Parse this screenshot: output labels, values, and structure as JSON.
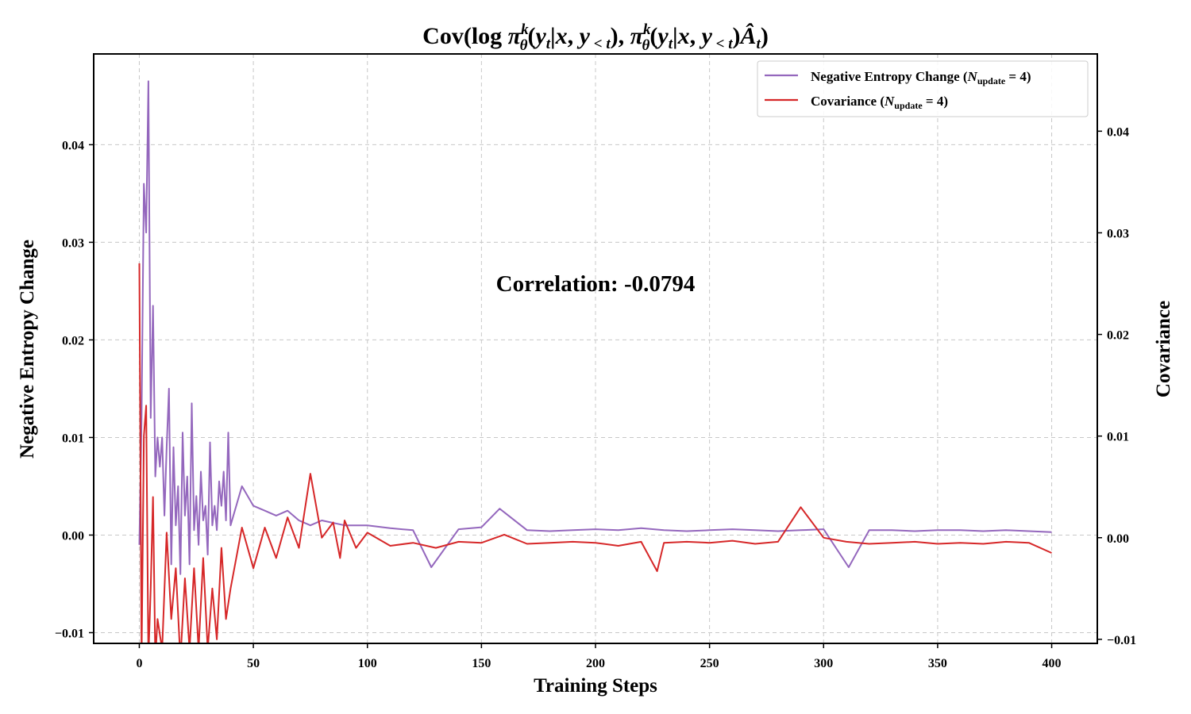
{
  "chart_data": {
    "type": "line",
    "title": "Cov(log π_θ^k(y_t|x, y_<t), π_θ^k(y_t|x, y_<t)Â_t)",
    "xlabel": "Training Steps",
    "ylabel_left": "Negative Entropy Change",
    "ylabel_right": "Covariance",
    "xlim": [
      -20,
      420
    ],
    "ylim_left": [
      -0.0111,
      0.0493
    ],
    "ylim_right": [
      -0.0104,
      0.0476
    ],
    "xticks": [
      0,
      50,
      100,
      150,
      200,
      250,
      300,
      350,
      400
    ],
    "yticks_left": [
      -0.01,
      0.0,
      0.01,
      0.02,
      0.03,
      0.04
    ],
    "yticks_right": [
      -0.01,
      0.0,
      0.01,
      0.02,
      0.03,
      0.04
    ],
    "tick_labels_left": [
      "−0.01",
      "0.00",
      "0.01",
      "0.02",
      "0.03",
      "0.04"
    ],
    "tick_labels_right": [
      "−0.01",
      "0.00",
      "0.01",
      "0.02",
      "0.03",
      "0.04"
    ],
    "tick_labels_x": [
      "0",
      "50",
      "100",
      "150",
      "200",
      "250",
      "300",
      "350",
      "400"
    ],
    "grid": true,
    "legend_position": "top-right",
    "annotation": "Correlation: -0.0794",
    "series": [
      {
        "name": "Negative Entropy Change (N_update = 4)",
        "legend_main": "Negative Entropy Change (",
        "legend_sym": "N",
        "legend_sub": "update",
        "legend_rest": " = 4)",
        "axis": "left",
        "color": "#9467bd",
        "points": [
          [
            0,
            -0.001
          ],
          [
            1,
            0.012
          ],
          [
            2,
            0.036
          ],
          [
            3,
            0.031
          ],
          [
            4,
            0.0465
          ],
          [
            5,
            0.012
          ],
          [
            6,
            0.0235
          ],
          [
            7,
            0.006
          ],
          [
            8,
            0.01
          ],
          [
            9,
            0.007
          ],
          [
            10,
            0.01
          ],
          [
            11,
            0.002
          ],
          [
            12,
            0.009
          ],
          [
            13,
            0.015
          ],
          [
            14,
            -0.003
          ],
          [
            15,
            0.009
          ],
          [
            16,
            0.001
          ],
          [
            17,
            0.005
          ],
          [
            18,
            -0.004
          ],
          [
            19,
            0.0105
          ],
          [
            20,
            0.002
          ],
          [
            21,
            0.006
          ],
          [
            22,
            -0.003
          ],
          [
            23,
            0.0135
          ],
          [
            24,
            0.0005
          ],
          [
            25,
            0.004
          ],
          [
            26,
            -0.001
          ],
          [
            27,
            0.0065
          ],
          [
            28,
            0.0015
          ],
          [
            29,
            0.003
          ],
          [
            30,
            -0.002
          ],
          [
            31,
            0.0095
          ],
          [
            32,
            0.001
          ],
          [
            33,
            0.003
          ],
          [
            34,
            0.0005
          ],
          [
            35,
            0.0055
          ],
          [
            36,
            0.003
          ],
          [
            37,
            0.0065
          ],
          [
            38,
            0.0015
          ],
          [
            39,
            0.0105
          ],
          [
            40,
            0.001
          ],
          [
            45,
            0.005
          ],
          [
            50,
            0.003
          ],
          [
            55,
            0.0025
          ],
          [
            60,
            0.002
          ],
          [
            65,
            0.0025
          ],
          [
            70,
            0.0015
          ],
          [
            75,
            0.001
          ],
          [
            80,
            0.0015
          ],
          [
            90,
            0.001
          ],
          [
            100,
            0.001
          ],
          [
            110,
            0.0007
          ],
          [
            120,
            0.0005
          ],
          [
            128,
            -0.0033
          ],
          [
            140,
            0.0006
          ],
          [
            150,
            0.0008
          ],
          [
            158,
            0.0027
          ],
          [
            170,
            0.0005
          ],
          [
            180,
            0.0004
          ],
          [
            190,
            0.0005
          ],
          [
            200,
            0.0006
          ],
          [
            210,
            0.0005
          ],
          [
            220,
            0.0007
          ],
          [
            230,
            0.0005
          ],
          [
            240,
            0.0004
          ],
          [
            250,
            0.0005
          ],
          [
            260,
            0.0006
          ],
          [
            270,
            0.0005
          ],
          [
            280,
            0.0004
          ],
          [
            290,
            0.0005
          ],
          [
            300,
            0.0006
          ],
          [
            311,
            -0.0033
          ],
          [
            320,
            0.0005
          ],
          [
            330,
            0.0005
          ],
          [
            340,
            0.0004
          ],
          [
            350,
            0.0005
          ],
          [
            360,
            0.0005
          ],
          [
            370,
            0.0004
          ],
          [
            380,
            0.0005
          ],
          [
            390,
            0.0004
          ],
          [
            400,
            0.0003
          ]
        ]
      },
      {
        "name": "Covariance (N_update = 4)",
        "legend_main": "Covariance (",
        "legend_sym": "N",
        "legend_sub": "update",
        "legend_rest": " = 4)",
        "axis": "right",
        "color": "#d62728",
        "points": [
          [
            0,
            0.027
          ],
          [
            1,
            -0.012
          ],
          [
            2,
            0.01
          ],
          [
            3,
            0.013
          ],
          [
            4,
            -0.012
          ],
          [
            5,
            -0.005
          ],
          [
            6,
            0.004
          ],
          [
            7,
            -0.012
          ],
          [
            8,
            -0.008
          ],
          [
            10,
            -0.011
          ],
          [
            12,
            0.0005
          ],
          [
            14,
            -0.008
          ],
          [
            16,
            -0.003
          ],
          [
            18,
            -0.012
          ],
          [
            20,
            -0.004
          ],
          [
            22,
            -0.011
          ],
          [
            24,
            -0.003
          ],
          [
            26,
            -0.011
          ],
          [
            28,
            -0.002
          ],
          [
            30,
            -0.011
          ],
          [
            32,
            -0.005
          ],
          [
            34,
            -0.01
          ],
          [
            36,
            -0.001
          ],
          [
            38,
            -0.008
          ],
          [
            40,
            -0.005
          ],
          [
            45,
            0.001
          ],
          [
            50,
            -0.003
          ],
          [
            55,
            0.001
          ],
          [
            60,
            -0.002
          ],
          [
            65,
            0.002
          ],
          [
            70,
            -0.001
          ],
          [
            75,
            0.0063
          ],
          [
            80,
            0.0
          ],
          [
            85,
            0.0015
          ],
          [
            88,
            -0.002
          ],
          [
            90,
            0.0017
          ],
          [
            95,
            -0.001
          ],
          [
            100,
            0.0005
          ],
          [
            110,
            -0.0008
          ],
          [
            120,
            -0.0005
          ],
          [
            130,
            -0.001
          ],
          [
            140,
            -0.0004
          ],
          [
            150,
            -0.0005
          ],
          [
            160,
            0.0003
          ],
          [
            170,
            -0.0006
          ],
          [
            180,
            -0.0005
          ],
          [
            190,
            -0.0004
          ],
          [
            200,
            -0.0005
          ],
          [
            210,
            -0.0008
          ],
          [
            220,
            -0.0004
          ],
          [
            227,
            -0.0033
          ],
          [
            230,
            -0.0005
          ],
          [
            240,
            -0.0004
          ],
          [
            250,
            -0.0005
          ],
          [
            260,
            -0.0003
          ],
          [
            270,
            -0.0006
          ],
          [
            280,
            -0.0004
          ],
          [
            290,
            0.003
          ],
          [
            300,
            0.0
          ],
          [
            310,
            -0.0004
          ],
          [
            320,
            -0.0006
          ],
          [
            330,
            -0.0005
          ],
          [
            340,
            -0.0004
          ],
          [
            350,
            -0.0006
          ],
          [
            360,
            -0.0005
          ],
          [
            370,
            -0.0006
          ],
          [
            380,
            -0.0004
          ],
          [
            390,
            -0.0005
          ],
          [
            400,
            -0.0015
          ]
        ]
      }
    ]
  }
}
